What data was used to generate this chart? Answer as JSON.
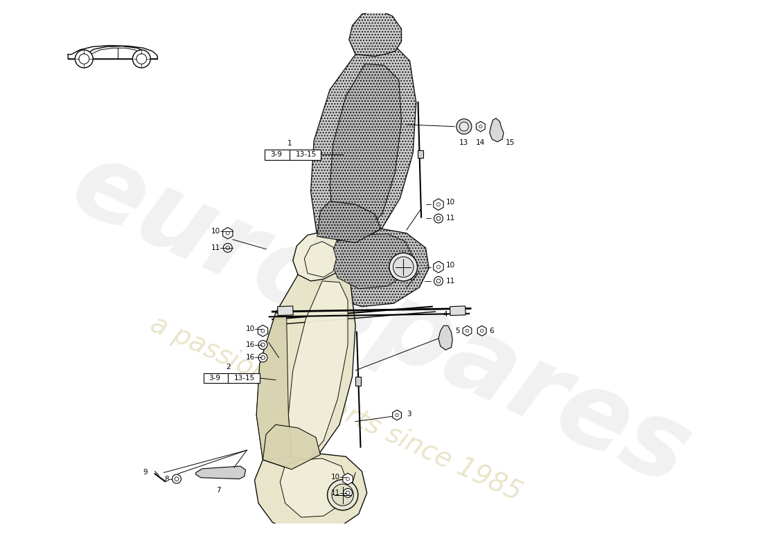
{
  "fig_width": 11.0,
  "fig_height": 8.0,
  "bg_color": "#ffffff",
  "watermark_text1": "eurospares",
  "watermark_text2": "a passion for parts since 1985",
  "watermark_color": "#c8c8c8",
  "seat1_fill": "#c8c8c8",
  "seat1_hatch": "....",
  "seat2_fill_outer": "#e8e4c8",
  "seat2_fill_inner": "#f0eed8",
  "line_color": "#000000",
  "label_fontsize": 7.5,
  "small_fontsize": 7.0
}
